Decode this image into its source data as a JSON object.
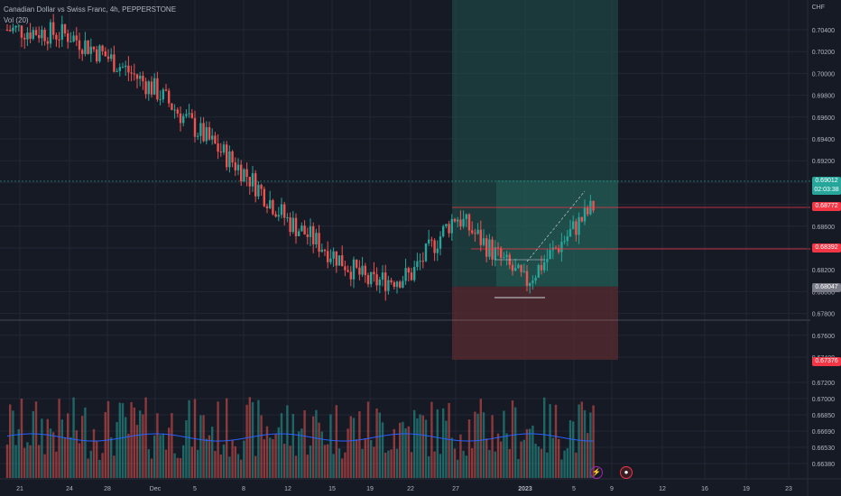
{
  "legend": {
    "symbol_line": "Canadian Dollar vs Swiss Franc, 4h, PEPPERSTONE",
    "volume_line": "Vol (20)"
  },
  "axis": {
    "currency": "CHF",
    "price_ticks": [
      "0.70400",
      "0.70200",
      "0.70000",
      "0.69800",
      "0.69600",
      "0.69400",
      "0.69200",
      "0.69000",
      "0.68800",
      "0.68600",
      "0.68400",
      "0.68200",
      "0.68000",
      "0.67800",
      "0.67600",
      "0.67400",
      "0.67200",
      "0.67000",
      "0.66850",
      "0.66690",
      "0.66530",
      "0.66380"
    ],
    "time_ticks": [
      "21",
      "24",
      "28",
      "Dec",
      "5",
      "8",
      "12",
      "15",
      "19",
      "22",
      "27",
      "2023",
      "5",
      "9",
      "12",
      "16",
      "19",
      "23"
    ]
  },
  "price_labels": {
    "current_price": "0.69012",
    "countdown": "02:03:38",
    "take_profit": "0.68772",
    "mid_level": "0.68392",
    "entry": "0.68047",
    "stop": "0.67376"
  },
  "colors": {
    "background": "#161a25",
    "up": "#26a69a",
    "down": "#ef5350",
    "profit_zone": "#1f4f4a",
    "loss_zone": "#5a2b30",
    "volume_ma": "#2962ff",
    "grid": "#222733"
  },
  "icons": {
    "lightning": "lightning-icon",
    "calendar": "calendar-event-icon"
  },
  "chart_data": {
    "type": "candlestick",
    "timeframe": "4h",
    "symbol": "CADCHF",
    "price_range": [
      0.6635,
      0.7052
    ],
    "overlays": {
      "long_position": {
        "entry": 0.68047,
        "take_profit": 0.68772,
        "stop_loss": 0.67376
      },
      "horizontal_levels": [
        0.68772,
        0.68392
      ]
    },
    "approx_close_path": [
      {
        "x": "21",
        "y": 0.704
      },
      {
        "x": "24",
        "y": 0.7035
      },
      {
        "x": "28",
        "y": 0.7015
      },
      {
        "x": "Dec",
        "y": 0.6985
      },
      {
        "x": "5",
        "y": 0.695
      },
      {
        "x": "8",
        "y": 0.691
      },
      {
        "x": "12",
        "y": 0.6865
      },
      {
        "x": "15",
        "y": 0.6835
      },
      {
        "x": "19",
        "y": 0.6808
      },
      {
        "x": "22",
        "y": 0.6815
      },
      {
        "x": "27",
        "y": 0.687
      },
      {
        "x": "2023",
        "y": 0.6808
      },
      {
        "x": "5",
        "y": 0.688
      }
    ]
  }
}
